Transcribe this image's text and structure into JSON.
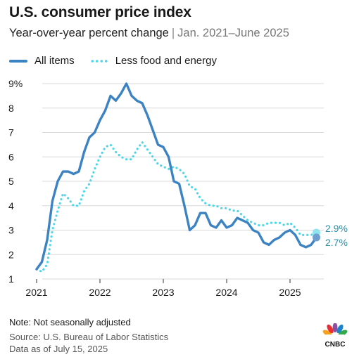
{
  "header": {
    "title": "U.S. consumer price index",
    "subtitle_main": "Year-over-year percent change",
    "subtitle_sep": "|",
    "subtitle_range": "Jan. 2021–June 2025"
  },
  "legend": {
    "all_items": "All items",
    "core": "Less food and energy"
  },
  "footer": {
    "note": "Note: Not seasonally adjusted",
    "source": "Source: U.S. Bureau of Labor Statistics",
    "asof": "Data as of July 15, 2025"
  },
  "logo": {
    "text": "CNBC",
    "icon": "peacock-icon"
  },
  "colors": {
    "all_items": "#3c83c3",
    "core": "#4fd6e8",
    "end_label": "#2a8fa8",
    "grid": "#d9d9d9"
  },
  "chart_data": {
    "type": "line",
    "title": "U.S. consumer price index",
    "ylim": [
      1,
      9
    ],
    "y_ticks": [
      "1",
      "2",
      "3",
      "4",
      "5",
      "6",
      "7",
      "8",
      "9%"
    ],
    "x_ticks": [
      "2021",
      "2022",
      "2023",
      "2024",
      "2025"
    ],
    "grid": true,
    "legend_position": "top-left",
    "x": [
      "2021-01",
      "2021-02",
      "2021-03",
      "2021-04",
      "2021-05",
      "2021-06",
      "2021-07",
      "2021-08",
      "2021-09",
      "2021-10",
      "2021-11",
      "2021-12",
      "2022-01",
      "2022-02",
      "2022-03",
      "2022-04",
      "2022-05",
      "2022-06",
      "2022-07",
      "2022-08",
      "2022-09",
      "2022-10",
      "2022-11",
      "2022-12",
      "2023-01",
      "2023-02",
      "2023-03",
      "2023-04",
      "2023-05",
      "2023-06",
      "2023-07",
      "2023-08",
      "2023-09",
      "2023-10",
      "2023-11",
      "2023-12",
      "2024-01",
      "2024-02",
      "2024-03",
      "2024-04",
      "2024-05",
      "2024-06",
      "2024-07",
      "2024-08",
      "2024-09",
      "2024-10",
      "2024-11",
      "2024-12",
      "2025-01",
      "2025-02",
      "2025-03",
      "2025-04",
      "2025-05",
      "2025-06"
    ],
    "series": [
      {
        "name": "All items",
        "values": [
          1.4,
          1.7,
          2.6,
          4.2,
          5.0,
          5.4,
          5.4,
          5.3,
          5.4,
          6.2,
          6.8,
          7.0,
          7.5,
          7.9,
          8.5,
          8.3,
          8.6,
          9.0,
          8.5,
          8.3,
          8.2,
          7.7,
          7.1,
          6.5,
          6.4,
          6.0,
          5.0,
          4.9,
          4.0,
          3.0,
          3.2,
          3.7,
          3.7,
          3.2,
          3.1,
          3.4,
          3.1,
          3.2,
          3.5,
          3.4,
          3.3,
          3.0,
          2.9,
          2.5,
          2.4,
          2.6,
          2.7,
          2.9,
          3.0,
          2.8,
          2.4,
          2.3,
          2.4,
          2.7
        ],
        "end_label": "2.7%"
      },
      {
        "name": "Less food and energy",
        "values": [
          1.4,
          1.3,
          1.6,
          3.0,
          3.8,
          4.5,
          4.3,
          4.0,
          4.0,
          4.6,
          4.9,
          5.5,
          6.0,
          6.4,
          6.5,
          6.2,
          6.0,
          5.9,
          5.9,
          6.3,
          6.6,
          6.3,
          6.0,
          5.7,
          5.6,
          5.5,
          5.6,
          5.5,
          5.3,
          4.8,
          4.7,
          4.3,
          4.1,
          4.0,
          4.0,
          3.9,
          3.9,
          3.8,
          3.8,
          3.6,
          3.4,
          3.3,
          3.2,
          3.2,
          3.3,
          3.3,
          3.3,
          3.2,
          3.3,
          3.1,
          2.8,
          2.8,
          2.8,
          2.9
        ],
        "end_label": "2.9%"
      }
    ]
  }
}
